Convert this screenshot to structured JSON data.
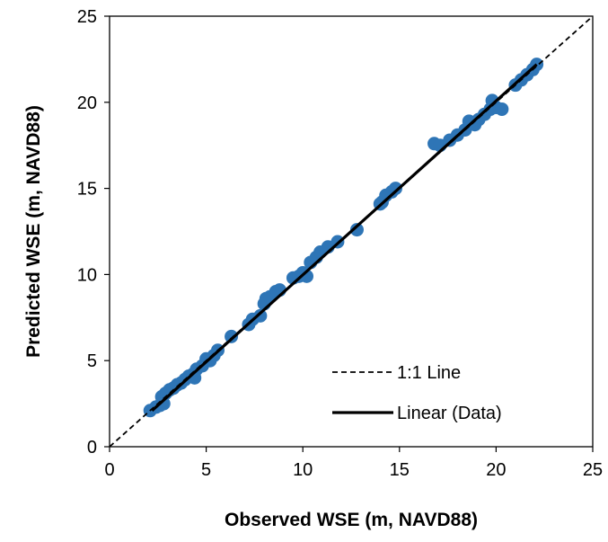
{
  "chart_data": {
    "type": "scatter",
    "xlabel": "Observed WSE (m, NAVD88)",
    "ylabel": "Predicted WSE (m, NAVD88)",
    "xlim": [
      0,
      25
    ],
    "ylim": [
      0,
      25
    ],
    "xticks": [
      "0",
      "5",
      "10",
      "15",
      "20",
      "25"
    ],
    "yticks": [
      "0",
      "5",
      "10",
      "15",
      "20",
      "25"
    ],
    "grid": false,
    "legend_position": "bottom-right",
    "series": [
      {
        "type": "scatter",
        "color": "#2E75B6",
        "points": [
          [
            2.1,
            2.1
          ],
          [
            2.4,
            2.3
          ],
          [
            2.6,
            2.4
          ],
          [
            2.8,
            2.5
          ],
          [
            2.7,
            2.9
          ],
          [
            2.9,
            3.1
          ],
          [
            3.1,
            3.3
          ],
          [
            3.3,
            3.4
          ],
          [
            3.5,
            3.6
          ],
          [
            3.7,
            3.7
          ],
          [
            3.9,
            3.9
          ],
          [
            4.1,
            4.1
          ],
          [
            4.3,
            4.2
          ],
          [
            4.5,
            4.5
          ],
          [
            4.4,
            4.0
          ],
          [
            4.8,
            4.7
          ],
          [
            5.0,
            5.1
          ],
          [
            5.2,
            5.0
          ],
          [
            5.4,
            5.3
          ],
          [
            5.6,
            5.6
          ],
          [
            6.3,
            6.4
          ],
          [
            7.2,
            7.1
          ],
          [
            7.4,
            7.4
          ],
          [
            7.8,
            7.6
          ],
          [
            8.0,
            8.3
          ],
          [
            8.1,
            8.6
          ],
          [
            8.3,
            8.7
          ],
          [
            8.6,
            9.0
          ],
          [
            8.8,
            9.1
          ],
          [
            9.5,
            9.8
          ],
          [
            9.8,
            9.9
          ],
          [
            10.0,
            10.1
          ],
          [
            10.2,
            9.9
          ],
          [
            10.4,
            10.7
          ],
          [
            10.7,
            11.0
          ],
          [
            10.9,
            11.3
          ],
          [
            11.3,
            11.6
          ],
          [
            11.8,
            11.9
          ],
          [
            12.8,
            12.6
          ],
          [
            14.0,
            14.1
          ],
          [
            14.1,
            14.2
          ],
          [
            14.3,
            14.6
          ],
          [
            14.6,
            14.8
          ],
          [
            14.8,
            15.0
          ],
          [
            16.8,
            17.6
          ],
          [
            17.1,
            17.5
          ],
          [
            17.6,
            17.8
          ],
          [
            18.0,
            18.1
          ],
          [
            18.4,
            18.4
          ],
          [
            18.6,
            18.9
          ],
          [
            18.9,
            18.7
          ],
          [
            19.1,
            19.0
          ],
          [
            19.4,
            19.3
          ],
          [
            19.7,
            19.6
          ],
          [
            19.8,
            20.1
          ],
          [
            20.0,
            19.7
          ],
          [
            20.3,
            19.6
          ],
          [
            21.0,
            21.0
          ],
          [
            21.3,
            21.3
          ],
          [
            21.6,
            21.6
          ],
          [
            21.9,
            21.9
          ],
          [
            22.1,
            22.2
          ]
        ]
      },
      {
        "type": "line",
        "name": "1:1 Line",
        "style": "dashed",
        "color": "#000000",
        "x": [
          0,
          25
        ],
        "y": [
          0,
          25
        ]
      },
      {
        "type": "line",
        "name": "Linear (Data)",
        "style": "solid",
        "color": "#000000",
        "x": [
          2.2,
          22.1
        ],
        "y": [
          2.1,
          22.2
        ]
      }
    ]
  }
}
